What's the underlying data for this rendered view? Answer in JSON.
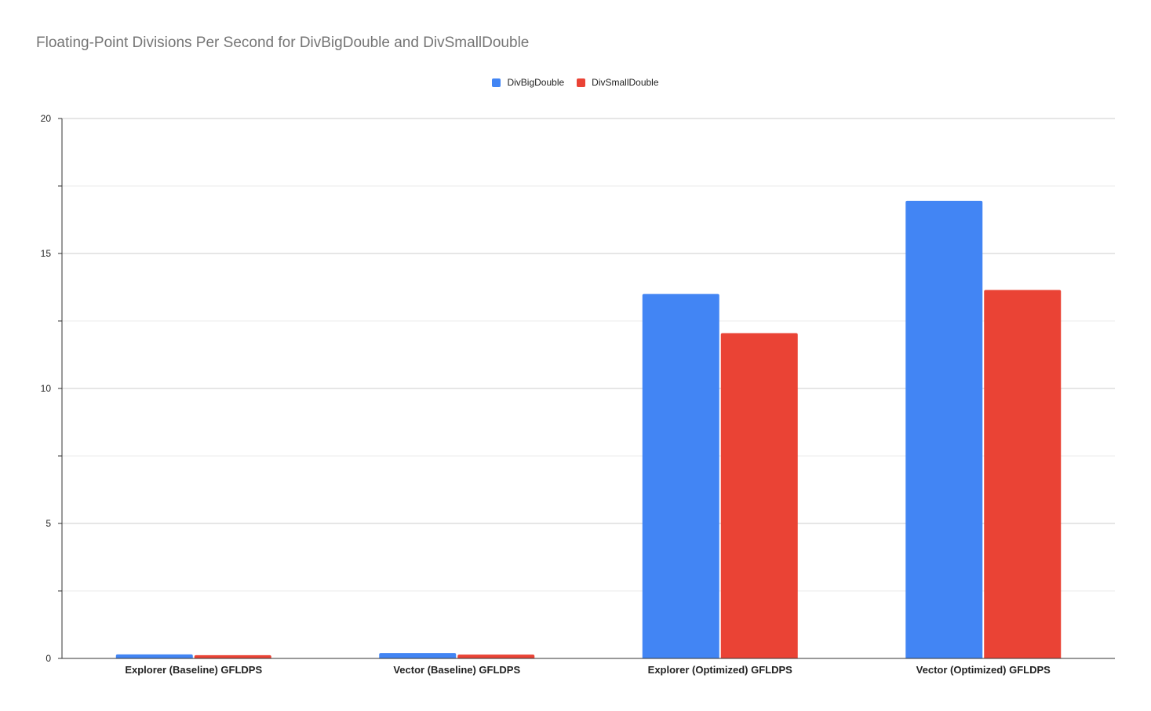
{
  "chart_data": {
    "type": "bar",
    "title": "Floating-Point Divisions Per Second for DivBigDouble and DivSmallDouble",
    "xlabel": "",
    "ylabel": "",
    "categories": [
      "Explorer (Baseline) GFLDPS",
      "Vector (Baseline) GFLDPS",
      "Explorer (Optimized) GFLDPS",
      "Vector (Optimized) GFLDPS"
    ],
    "series": [
      {
        "name": "DivBigDouble",
        "color": "#4285f4",
        "values": [
          0.15,
          0.2,
          13.5,
          16.95
        ]
      },
      {
        "name": "DivSmallDouble",
        "color": "#ea4335",
        "values": [
          0.12,
          0.14,
          12.05,
          13.65
        ]
      }
    ],
    "ylim": [
      0,
      20
    ],
    "yticks": [
      0,
      5,
      10,
      15,
      20
    ],
    "grid": true,
    "legend_position": "top"
  }
}
